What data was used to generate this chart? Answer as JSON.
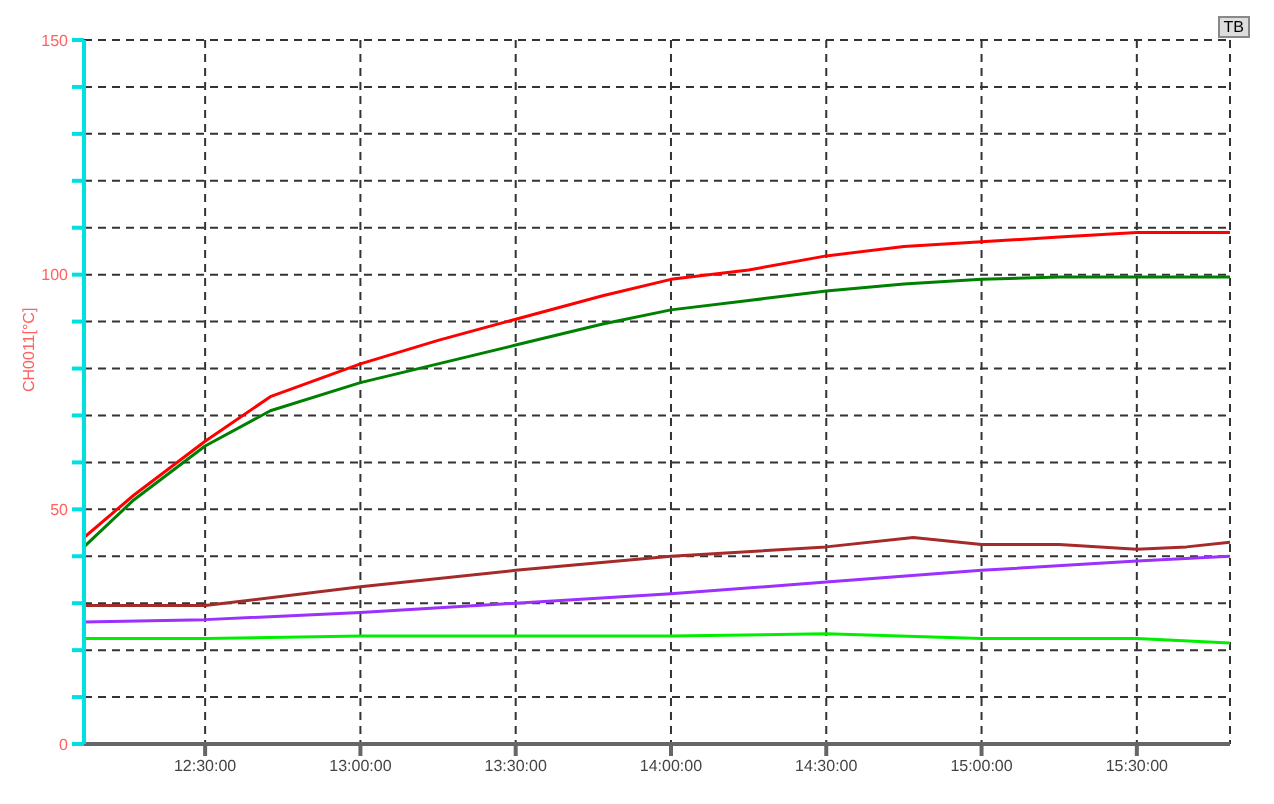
{
  "chart_data": {
    "type": "line",
    "ylabel": "CH0011[°C]",
    "annotations": [
      "TB"
    ],
    "xlim": [
      12.11,
      15.8
    ],
    "xticks": [
      {
        "value": 12.5,
        "label": "12:30:00"
      },
      {
        "value": 13,
        "label": "13:00:00"
      },
      {
        "value": 13.5,
        "label": "13:30:00"
      },
      {
        "value": 14,
        "label": "14:00:00"
      },
      {
        "value": 14.5,
        "label": "14:30:00"
      },
      {
        "value": 15,
        "label": "15:00:00"
      },
      {
        "value": 15.5,
        "label": "15:30:00"
      }
    ],
    "ylim": [
      0,
      150
    ],
    "yticks": [
      0,
      {
        "value": 10,
        "label": null
      },
      {
        "value": 20,
        "label": null
      },
      {
        "value": 30,
        "label": null
      },
      {
        "value": 40,
        "label": null
      },
      50,
      {
        "value": 60,
        "label": null
      },
      {
        "value": 70,
        "label": null
      },
      {
        "value": 80,
        "label": null
      },
      {
        "value": 90,
        "label": null
      },
      100,
      {
        "value": 110,
        "label": null
      },
      {
        "value": 120,
        "label": null
      },
      {
        "value": 130,
        "label": null
      },
      {
        "value": 140,
        "label": null
      },
      150
    ],
    "grid": true,
    "legend": false,
    "marker": "none",
    "line_style": "solid",
    "series": [
      {
        "color": "#ff0000",
        "x": [
          12.11,
          12.27,
          12.5,
          12.71,
          13,
          13.25,
          13.5,
          13.78,
          14,
          14.25,
          14.5,
          14.75,
          15,
          15.25,
          15.5,
          15.8
        ],
        "values": [
          44,
          53,
          64.5,
          74,
          81,
          86,
          90.5,
          95.5,
          99,
          101,
          104,
          106,
          107,
          108,
          109,
          109
        ]
      },
      {
        "color": "#008000",
        "x": [
          12.11,
          12.27,
          12.5,
          12.71,
          13,
          13.25,
          13.5,
          13.78,
          14,
          14.25,
          14.5,
          14.75,
          15,
          15.25,
          15.5,
          15.8
        ],
        "values": [
          42,
          52,
          63.5,
          71,
          77,
          81,
          85,
          89.5,
          92.5,
          94.5,
          96.5,
          98,
          99,
          99.5,
          99.5,
          99.5
        ]
      },
      {
        "color": "#a52a2a",
        "x": [
          12.11,
          12.5,
          13,
          13.5,
          14,
          14.5,
          14.78,
          15,
          15.25,
          15.5,
          15.66,
          15.8
        ],
        "values": [
          29.5,
          29.5,
          33.5,
          37,
          40,
          42,
          44,
          42.5,
          42.5,
          41.5,
          42,
          43
        ]
      },
      {
        "color": "#9b30ff",
        "x": [
          12.11,
          12.5,
          13,
          13.5,
          14,
          14.5,
          15,
          15.5,
          15.8
        ],
        "values": [
          26,
          26.5,
          28,
          30,
          32,
          34.5,
          37,
          39,
          40
        ]
      },
      {
        "color": "#00ee00",
        "x": [
          12.11,
          12.5,
          13,
          13.5,
          14,
          14.5,
          15,
          15.5,
          15.8
        ],
        "values": [
          22.5,
          22.5,
          23,
          23,
          23,
          23.5,
          22.5,
          22.5,
          21.5
        ]
      }
    ]
  }
}
